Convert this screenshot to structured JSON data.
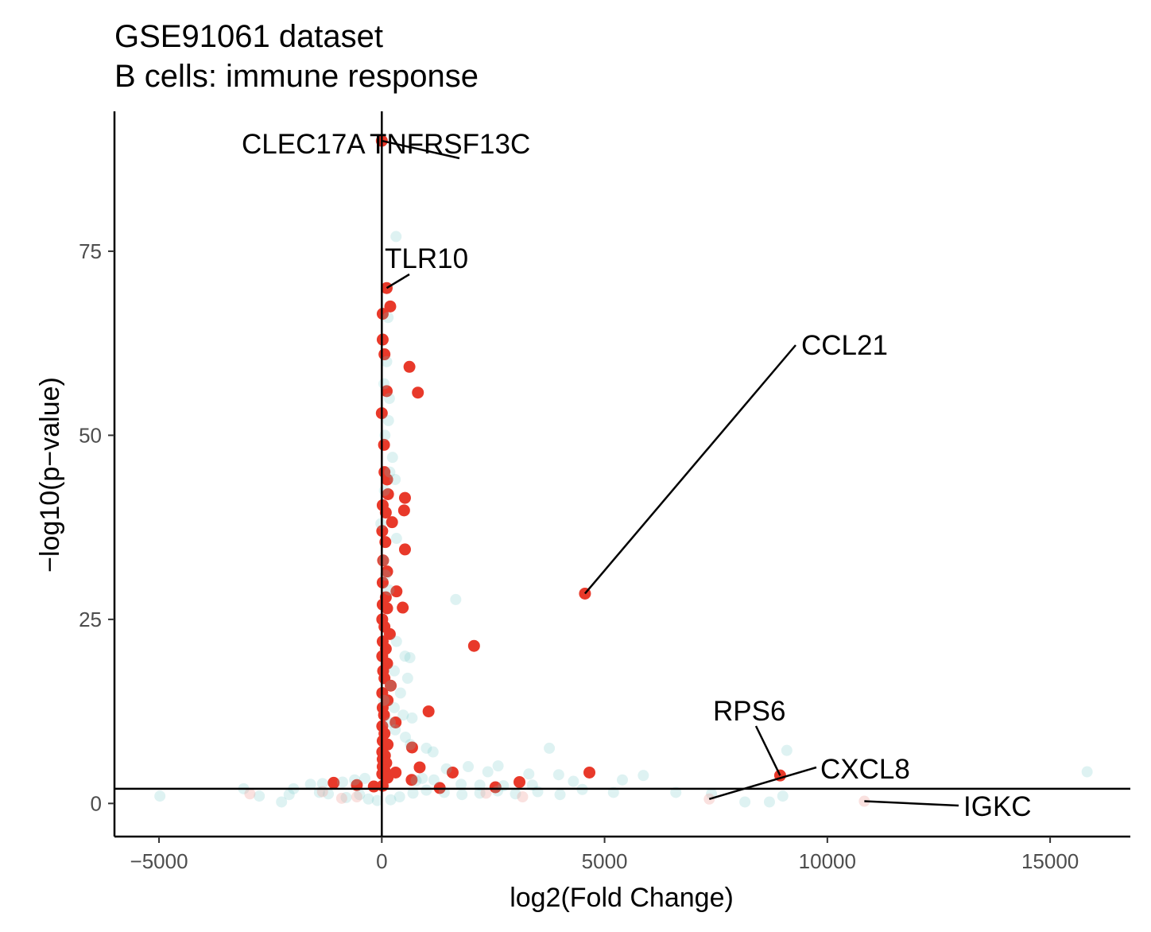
{
  "chart_data": {
    "type": "scatter",
    "title": "GSE91061 dataset",
    "subtitle": "B cells: immune response",
    "xlabel": "log2(Fold Change)",
    "ylabel": "−log10(p−value)",
    "xlim": [
      -6000,
      16800
    ],
    "ylim": [
      -4.5,
      94
    ],
    "x_ticks": [
      -5000,
      0,
      5000,
      10000,
      15000
    ],
    "x_tick_labels": [
      "−5000",
      "0",
      "5000",
      "10000",
      "15000"
    ],
    "y_ticks": [
      0,
      25,
      50,
      75
    ],
    "y_tick_labels": [
      "0",
      "25",
      "50",
      "75"
    ],
    "grid": false,
    "legend": "none",
    "reference_lines": {
      "vertical_x": 0,
      "horizontal_y": 2
    },
    "colors": {
      "significant": "#e8392a",
      "not_significant": "#67c2c6",
      "faded_red": "#ef9a94",
      "axis": "#000000"
    },
    "series": [
      {
        "color": "significant",
        "points": [
          [
            0,
            90
          ],
          [
            110,
            70
          ],
          [
            190,
            67.5
          ],
          [
            20,
            66.5
          ],
          [
            20,
            63
          ],
          [
            60,
            61
          ],
          [
            620,
            59.3
          ],
          [
            110,
            56
          ],
          [
            810,
            55.8
          ],
          [
            0,
            53
          ],
          [
            50,
            48.7
          ],
          [
            60,
            45
          ],
          [
            120,
            44
          ],
          [
            140,
            42
          ],
          [
            520,
            41.5
          ],
          [
            20,
            40.5
          ],
          [
            90,
            39.5
          ],
          [
            230,
            38.2
          ],
          [
            500,
            39.8
          ],
          [
            10,
            37
          ],
          [
            80,
            35.5
          ],
          [
            520,
            34.5
          ],
          [
            30,
            33
          ],
          [
            120,
            31.5
          ],
          [
            20,
            30
          ],
          [
            330,
            28.8
          ],
          [
            90,
            28
          ],
          [
            20,
            27
          ],
          [
            120,
            26.5
          ],
          [
            470,
            26.6
          ],
          [
            10,
            25
          ],
          [
            60,
            24
          ],
          [
            180,
            23
          ],
          [
            20,
            22
          ],
          [
            90,
            21
          ],
          [
            2070,
            21.4
          ],
          [
            10,
            20
          ],
          [
            120,
            19
          ],
          [
            30,
            18
          ],
          [
            60,
            17
          ],
          [
            200,
            16
          ],
          [
            10,
            15
          ],
          [
            130,
            14
          ],
          [
            20,
            13
          ],
          [
            50,
            12
          ],
          [
            1050,
            12.5
          ],
          [
            310,
            11
          ],
          [
            10,
            10.5
          ],
          [
            60,
            9.5
          ],
          [
            20,
            8.5
          ],
          [
            130,
            8
          ],
          [
            680,
            7.6
          ],
          [
            10,
            7
          ],
          [
            70,
            6.5
          ],
          [
            20,
            6
          ],
          [
            100,
            5.5
          ],
          [
            20,
            5
          ],
          [
            60,
            4.5
          ],
          [
            850,
            4.9
          ],
          [
            10,
            4
          ],
          [
            130,
            3.5
          ],
          [
            310,
            4.2
          ],
          [
            1590,
            4.2
          ],
          [
            4660,
            4.2
          ],
          [
            670,
            3.2
          ],
          [
            3090,
            2.9
          ],
          [
            -1080,
            2.8
          ],
          [
            -560,
            2.5
          ],
          [
            20,
            2.4
          ],
          [
            2550,
            2.2
          ],
          [
            1300,
            2.1
          ],
          [
            -180,
            2.3
          ],
          [
            4560,
            28.5
          ],
          [
            8940,
            3.8
          ]
        ]
      },
      {
        "color": "not_significant",
        "points": [
          [
            320,
            77
          ],
          [
            140,
            66
          ],
          [
            110,
            60
          ],
          [
            70,
            50
          ],
          [
            170,
            55
          ],
          [
            150,
            52
          ],
          [
            50,
            57
          ],
          [
            240,
            47
          ],
          [
            300,
            44
          ],
          [
            180,
            45
          ],
          [
            60,
            42.5
          ],
          [
            330,
            36
          ],
          [
            40,
            33
          ],
          [
            80,
            31
          ],
          [
            160,
            29
          ],
          [
            -20,
            38
          ],
          [
            1660,
            27.7
          ],
          [
            520,
            20
          ],
          [
            630,
            19.8
          ],
          [
            330,
            22
          ],
          [
            280,
            18
          ],
          [
            580,
            17
          ],
          [
            200,
            16
          ],
          [
            420,
            15
          ],
          [
            50,
            14
          ],
          [
            280,
            13
          ],
          [
            480,
            12
          ],
          [
            680,
            11.6
          ],
          [
            190,
            11
          ],
          [
            300,
            10
          ],
          [
            530,
            9
          ],
          [
            640,
            8
          ],
          [
            1000,
            7.5
          ],
          [
            1150,
            7
          ],
          [
            3760,
            7.5
          ],
          [
            9090,
            7.2
          ],
          [
            2610,
            5.1
          ],
          [
            1940,
            5
          ],
          [
            1450,
            4.7
          ],
          [
            2380,
            4.3
          ],
          [
            3300,
            4
          ],
          [
            3970,
            3.9
          ],
          [
            5870,
            3.8
          ],
          [
            15830,
            4.3
          ],
          [
            5400,
            3.2
          ],
          [
            4300,
            3
          ],
          [
            3380,
            2.5
          ],
          [
            2730,
            2.4
          ],
          [
            2200,
            2.5
          ],
          [
            1780,
            2.6
          ],
          [
            1170,
            3.2
          ],
          [
            910,
            3.4
          ],
          [
            770,
            3.1
          ],
          [
            -380,
            3.4
          ],
          [
            -610,
            3.2
          ],
          [
            -880,
            2.9
          ],
          [
            -1330,
            2.7
          ],
          [
            -1600,
            2.6
          ],
          [
            -1980,
            2
          ],
          [
            -2080,
            1.2
          ],
          [
            -2250,
            0.2
          ],
          [
            -2750,
            1
          ],
          [
            -3100,
            2
          ],
          [
            -4980,
            1
          ],
          [
            -1400,
            1.5
          ],
          [
            -1200,
            1.3
          ],
          [
            -800,
            0.8
          ],
          [
            -500,
            1.2
          ],
          [
            -300,
            0.6
          ],
          [
            -100,
            0.4
          ],
          [
            200,
            0.5
          ],
          [
            400,
            0.9
          ],
          [
            700,
            1.4
          ],
          [
            1000,
            1.8
          ],
          [
            1400,
            1.5
          ],
          [
            1800,
            1.2
          ],
          [
            2200,
            1.4
          ],
          [
            2600,
            1.7
          ],
          [
            3000,
            1.3
          ],
          [
            3500,
            1.6
          ],
          [
            4000,
            1.2
          ],
          [
            4500,
            1.9
          ],
          [
            5200,
            1.5
          ],
          [
            6600,
            1.5
          ],
          [
            7400,
            1.3
          ],
          [
            8150,
            0.2
          ],
          [
            8700,
            0.2
          ],
          [
            9000,
            1
          ]
        ]
      },
      {
        "color": "faded_red",
        "points": [
          [
            -2960,
            1.3
          ],
          [
            -1330,
            1.6
          ],
          [
            -900,
            0.7
          ],
          [
            -560,
            0.9
          ],
          [
            2340,
            1.4
          ],
          [
            3160,
            0.9
          ],
          [
            7350,
            0.6
          ],
          [
            10830,
            0.3
          ]
        ]
      }
    ],
    "annotations": [
      {
        "text": "CLEC17A",
        "x": 0,
        "y": 90
      },
      {
        "text": "TNFRSF13C",
        "x": 0,
        "y": 90
      },
      {
        "text": "TLR10",
        "x": 110,
        "y": 70
      },
      {
        "text": "CCL21",
        "x": 4560,
        "y": 28.5
      },
      {
        "text": "RPS6",
        "x": 8940,
        "y": 3.8
      },
      {
        "text": "CXCL8",
        "x": 7350,
        "y": 0.6
      },
      {
        "text": "IGKC",
        "x": 10830,
        "y": 0.3
      }
    ]
  }
}
